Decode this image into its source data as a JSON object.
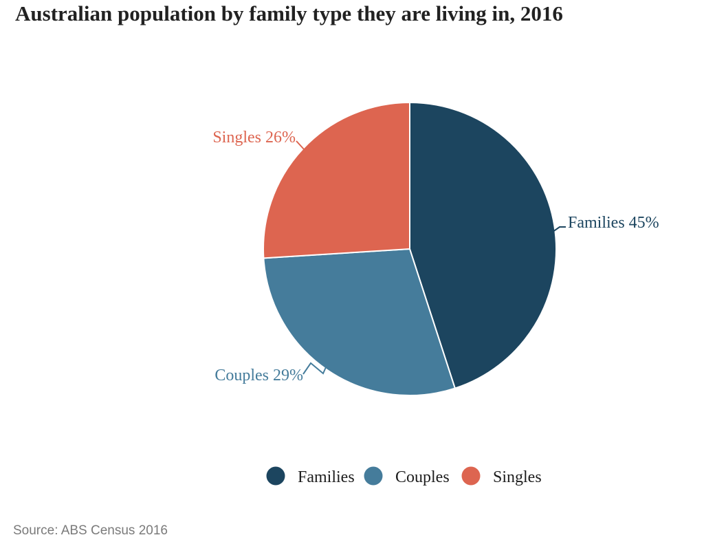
{
  "title": "Australian population by family type they are living in, 2016",
  "source": "Source: ABS Census 2016",
  "chart_data": {
    "type": "pie",
    "categories": [
      "Families",
      "Couples",
      "Singles"
    ],
    "values": [
      45,
      29,
      26
    ],
    "unit": "%",
    "colors": [
      "#1C455F",
      "#457C9B",
      "#DD6550"
    ],
    "callouts": [
      "Families 45%",
      "Couples 29%",
      "Singles 26%"
    ],
    "legend": [
      "Families",
      "Couples",
      "Singles"
    ],
    "legend_position": "bottom",
    "title": "Australian population by family type they are living in, 2016",
    "start_angle": "top",
    "direction": "clockwise",
    "separator_color": "#ffffff"
  }
}
